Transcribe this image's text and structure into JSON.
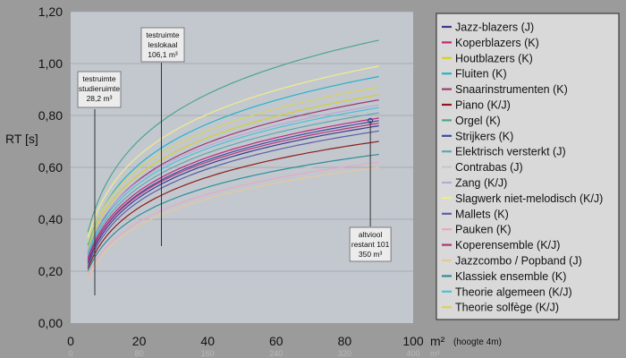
{
  "chart_data": {
    "type": "line",
    "title": "",
    "ylabel": "RT [s]",
    "xlabel": "m²",
    "xlabel_note": "(hoogte 4m)",
    "xlim": [
      0,
      100
    ],
    "ylim": [
      0,
      1.2
    ],
    "x_ticks": [
      "0",
      "20",
      "40",
      "60",
      "80",
      "100"
    ],
    "y_ticks": [
      "0,00",
      "0,20",
      "0,40",
      "0,60",
      "0,80",
      "1,00",
      "1,20"
    ],
    "x2_ticks": [
      "0",
      "80",
      "160",
      "240",
      "320",
      "400"
    ],
    "x2_unit": "m³",
    "grid": true,
    "legend_position": "right",
    "x_range_of_curves": [
      5,
      90
    ],
    "series": [
      {
        "name": "Jazz-blazers (J)",
        "color": "#3b3b8c",
        "y_at_5": 0.23,
        "y_at_90": 0.76
      },
      {
        "name": "Koperblazers (K)",
        "color": "#c0267a",
        "y_at_5": 0.25,
        "y_at_90": 0.79
      },
      {
        "name": "Houtblazers (K)",
        "color": "#d6cf2c",
        "y_at_5": 0.29,
        "y_at_90": 0.88
      },
      {
        "name": "Fluiten (K)",
        "color": "#23b3c6",
        "y_at_5": 0.3,
        "y_at_90": 0.95
      },
      {
        "name": "Snaarinstrumenten (K)",
        "color": "#9c3b70",
        "y_at_5": 0.27,
        "y_at_90": 0.86
      },
      {
        "name": "Piano (K/J)",
        "color": "#8e1b1b",
        "y_at_5": 0.21,
        "y_at_90": 0.7
      },
      {
        "name": "Orgel (K)",
        "color": "#4da58f",
        "y_at_5": 0.35,
        "y_at_90": 1.09
      },
      {
        "name": "Strijkers (K)",
        "color": "#3d4aa0",
        "y_at_5": 0.24,
        "y_at_90": 0.78
      },
      {
        "name": "Elektrisch versterkt (J)",
        "color": "#5ea8b0",
        "y_at_5": 0.26,
        "y_at_90": 0.81
      },
      {
        "name": "Contrabas (J)",
        "color": "#c8c8c8",
        "y_at_5": 0.19,
        "y_at_90": 0.64
      },
      {
        "name": "Zang (K/J)",
        "color": "#b7a7d8",
        "y_at_5": 0.28,
        "y_at_90": 0.84
      },
      {
        "name": "Slagwerk niet-melodisch (K/J)",
        "color": "#f0ec8a",
        "y_at_5": 0.33,
        "y_at_90": 0.99
      },
      {
        "name": "Mallets (K)",
        "color": "#5a5fa8",
        "y_at_5": 0.22,
        "y_at_90": 0.74
      },
      {
        "name": "Pauken (K)",
        "color": "#e6a8c8",
        "y_at_5": 0.18,
        "y_at_90": 0.62
      },
      {
        "name": "Koperensemble (K/J)",
        "color": "#b3327e",
        "y_at_5": 0.24,
        "y_at_90": 0.77
      },
      {
        "name": "Jazzcombo / Popband (J)",
        "color": "#e6c89a",
        "y_at_5": 0.17,
        "y_at_90": 0.6
      },
      {
        "name": "Klassiek ensemble (K)",
        "color": "#2e8c9c",
        "y_at_5": 0.2,
        "y_at_90": 0.65
      },
      {
        "name": "Theorie algemeen (K/J)",
        "color": "#49c2d6",
        "y_at_5": 0.27,
        "y_at_90": 0.83
      },
      {
        "name": "Theorie solfège (K/J)",
        "color": "#d8d260",
        "y_at_5": 0.31,
        "y_at_90": 0.91
      }
    ],
    "annotations": [
      {
        "lines": [
          "testruimte",
          "studieruimte",
          "28,2 m³"
        ],
        "x": 7.05
      },
      {
        "lines": [
          "testruimte",
          "leslokaal",
          "106,1 m³"
        ],
        "x": 26.5
      },
      {
        "lines": [
          "altviool",
          "restant 101",
          "350 m³"
        ],
        "x": 87.5,
        "y": 0.78
      }
    ]
  }
}
